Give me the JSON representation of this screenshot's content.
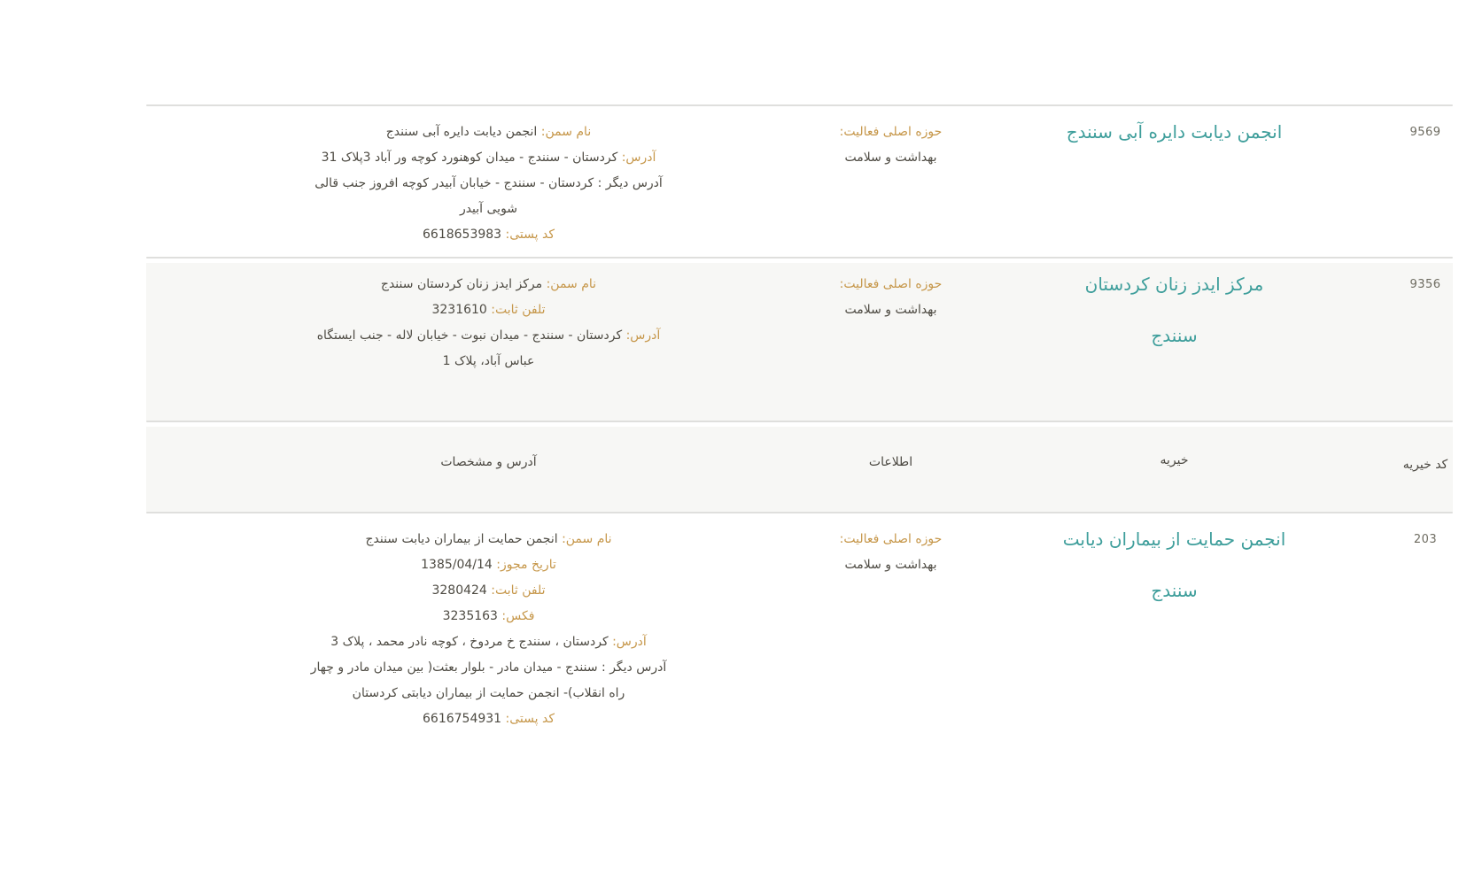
{
  "colors": {
    "label_accent": "#c6974a",
    "title_teal": "#3e9e9b",
    "body_text": "#4e4b43",
    "code_gray": "#6d6b60",
    "alt_row_bg": "#f7f7f5",
    "divider": "#dfdfdd"
  },
  "header": {
    "code": "کد خیریه",
    "charity": "خیریه",
    "info": "اطلاعات",
    "details": "آدرس و مشخصات"
  },
  "rows": [
    {
      "id": "9569",
      "title_lines": [
        "انجمن دیابت دایره آبی سنندج"
      ],
      "info_label": "حوزه اصلی فعالیت:",
      "info_value": "بهداشت و سلامت",
      "fields": [
        {
          "label": "نام سمن:",
          "value": " انجمن دیابت دایره آبی سنندج"
        },
        {
          "label": "آدرس:",
          "value": " کردستان - سنندج - میدان کوهنورد کوچه ور آباد 3پلاک 31"
        },
        {
          "label": "",
          "value": "آدرس دیگر : کردستان - سنندج - خیابان آبیدر کوچه افروز جنب قالی"
        },
        {
          "label": "",
          "value": "شویی آبیدر"
        },
        {
          "label": "کد پستی:",
          "value": " 6618653983"
        }
      ]
    },
    {
      "id": "9356",
      "title_lines": [
        "مرکز ایدز زنان کردستان",
        "سنندج"
      ],
      "info_label": "حوزه اصلی فعالیت:",
      "info_value": "بهداشت و سلامت",
      "fields": [
        {
          "label": "نام سمن:",
          "value": " مرکز ایدز زنان کردستان سنندج"
        },
        {
          "label": "تلفن ثابت:",
          "value": " 3231610"
        },
        {
          "label": "آدرس:",
          "value": " کردستان - سنندج - میدان نبوت - خیابان لاله - جنب ایستگاه"
        },
        {
          "label": "",
          "value": "عباس آباد، پلاک 1"
        }
      ]
    },
    {
      "id": "203",
      "title_lines": [
        "انجمن حمایت از بیماران دیابت",
        "سنندج"
      ],
      "info_label": "حوزه اصلی فعالیت:",
      "info_value": "بهداشت و سلامت",
      "fields": [
        {
          "label": "نام سمن:",
          "value": " انجمن حمایت از بیماران دیابت سنندج"
        },
        {
          "label": "تاریخ مجوز:",
          "value": " 1385/04/14"
        },
        {
          "label": "تلفن ثابت:",
          "value": " 3280424"
        },
        {
          "label": "فکس:",
          "value": " 3235163"
        },
        {
          "label": "آدرس:",
          "value": " کردستان ، سنندج خ مردوخ ، کوچه نادر محمد ، پلاک 3"
        },
        {
          "label": "",
          "value": "آدرس دیگر : سنندج - میدان مادر - بلوار بعثت( بین میدان مادر و چهار"
        },
        {
          "label": "",
          "value": "راه انقلاب)- انجمن حمایت از بیماران دیابتی کردستان"
        },
        {
          "label": "کد پستی:",
          "value": " 6616754931"
        }
      ]
    }
  ]
}
